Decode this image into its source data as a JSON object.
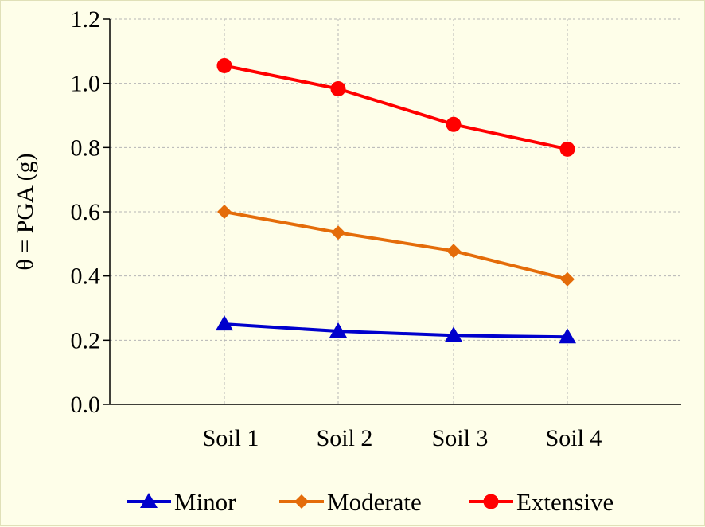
{
  "chart_data": {
    "type": "line",
    "title": "",
    "xlabel": "",
    "ylabel": "θ = PGA (g)",
    "categories": [
      "Soil 1",
      "Soil 2",
      "Soil 3",
      "Soil 4"
    ],
    "ylim": [
      0,
      1.2
    ],
    "yticks": [
      "0.0",
      "0.2",
      "0.4",
      "0.6",
      "0.8",
      "1.0",
      "1.2"
    ],
    "grid": true,
    "legend_position": "bottom",
    "series": [
      {
        "name": "Minor",
        "values": [
          0.25,
          0.228,
          0.215,
          0.21
        ],
        "color": "#0000cc",
        "marker": "triangle"
      },
      {
        "name": "Moderate",
        "values": [
          0.6,
          0.535,
          0.478,
          0.39
        ],
        "color": "#e46c0a",
        "marker": "diamond"
      },
      {
        "name": "Extensive",
        "values": [
          1.055,
          0.983,
          0.872,
          0.795
        ],
        "color": "#ff0000",
        "marker": "circle"
      }
    ]
  }
}
